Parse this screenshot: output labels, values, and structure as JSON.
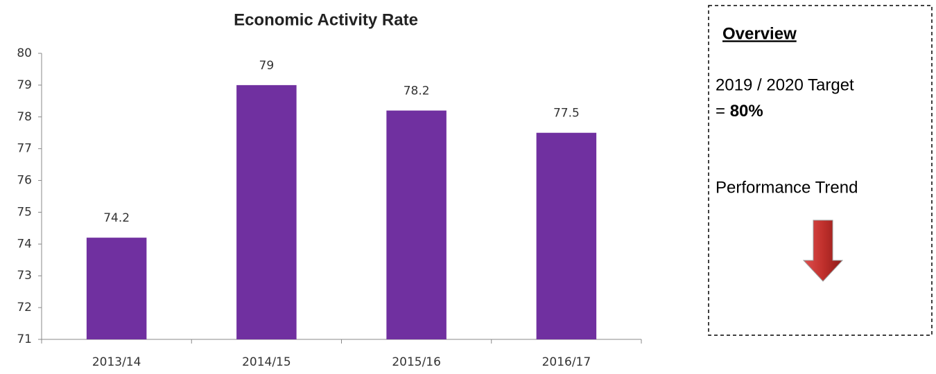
{
  "chart_data": {
    "type": "bar",
    "title": "Economic Activity Rate",
    "categories": [
      "2013/14",
      "2014/15",
      "2015/16",
      "2016/17"
    ],
    "values": [
      74.2,
      79,
      78.2,
      77.5
    ],
    "color": "#7030a0",
    "ylim": [
      71,
      80
    ],
    "yticks": [
      71,
      72,
      73,
      74,
      75,
      76,
      77,
      78,
      79,
      80
    ],
    "grid": false
  },
  "overview": {
    "heading": "Overview",
    "target_text": "2019 / 2020 Target",
    "target_prefix": "=",
    "target_value": "80%",
    "trend_label": "Performance Trend"
  }
}
